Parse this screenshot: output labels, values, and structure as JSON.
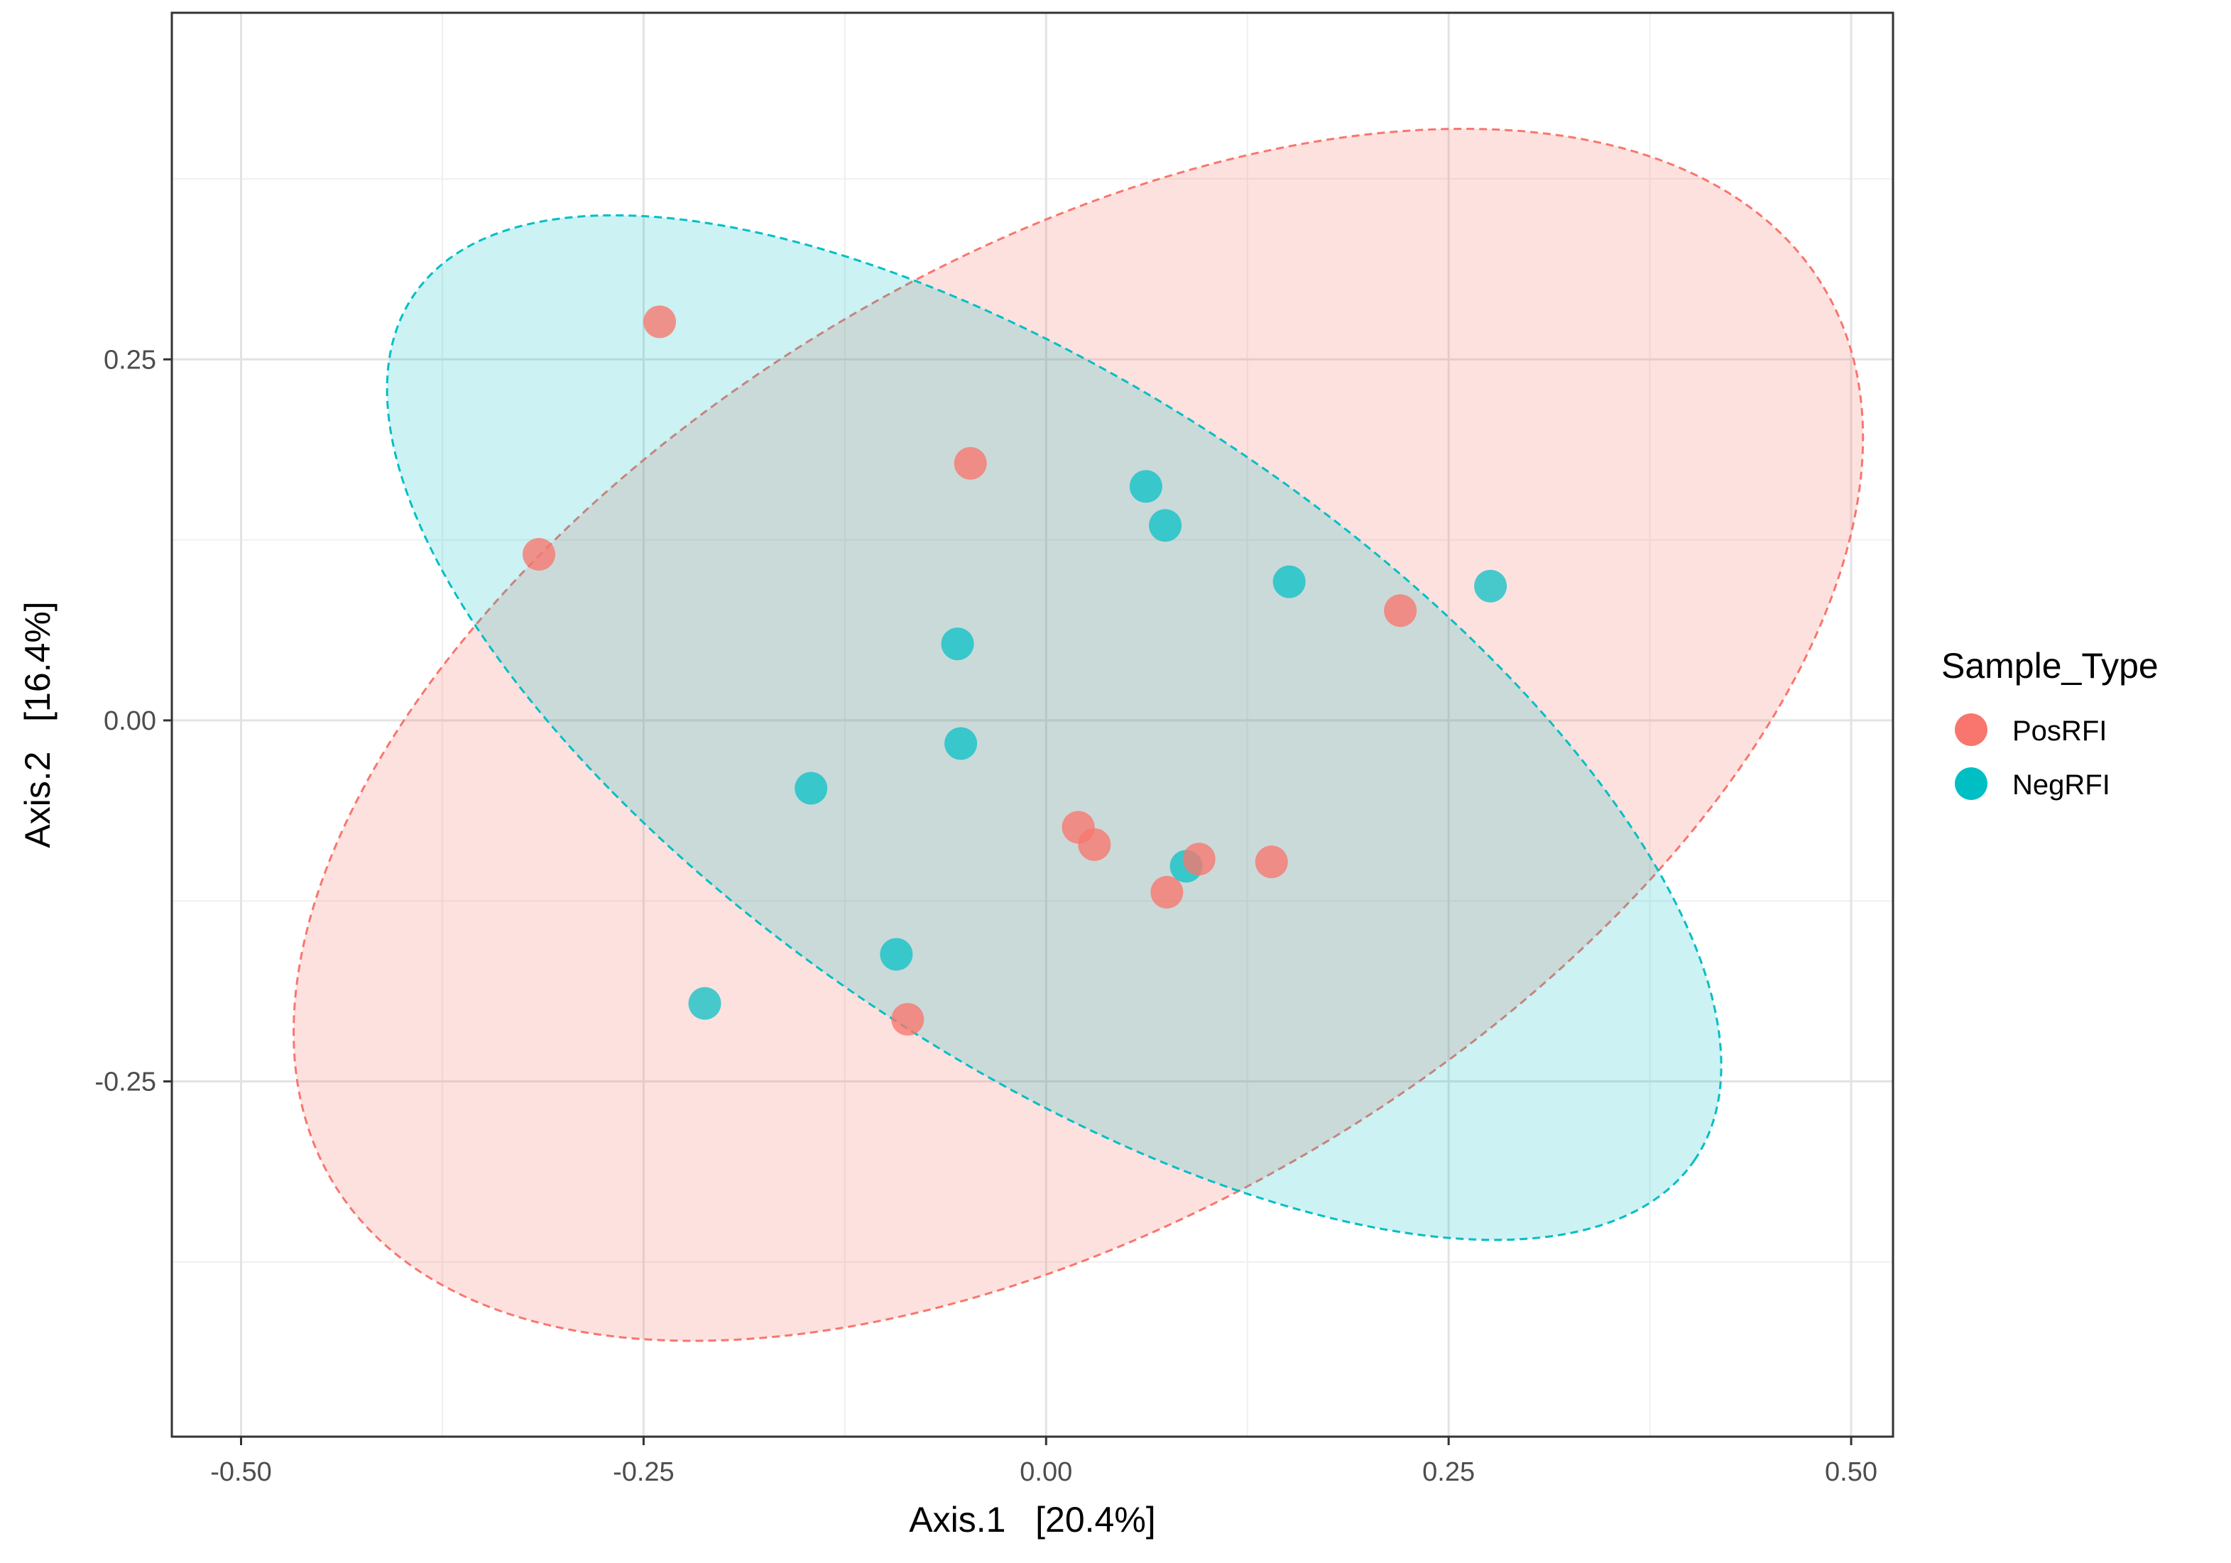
{
  "chart_data": {
    "type": "scatter",
    "title": "",
    "xlabel": "Axis.1   [20.4%]",
    "ylabel": "Axis.2   [16.4%]",
    "xlim": [
      -0.543,
      0.526
    ],
    "ylim": [
      -0.496,
      0.49
    ],
    "xticks": [
      -0.5,
      -0.25,
      0.0,
      0.25,
      0.5
    ],
    "xtick_labels": [
      "-0.50",
      "-0.25",
      "0.00",
      "0.25",
      "0.50"
    ],
    "yticks": [
      -0.25,
      0.0,
      0.25
    ],
    "ytick_labels": [
      "-0.25",
      "0.00",
      "0.25"
    ],
    "grid": true,
    "legend": {
      "title": "Sample_Type",
      "position": "right"
    },
    "series": [
      {
        "name": "PosRFI",
        "color": "#F8766D",
        "x": [
          -0.24,
          -0.315,
          -0.047,
          0.22,
          0.02,
          0.03,
          0.095,
          0.14,
          0.075,
          -0.086
        ],
        "y": [
          0.276,
          0.115,
          0.178,
          0.076,
          -0.074,
          -0.086,
          -0.096,
          -0.098,
          -0.119,
          -0.207
        ],
        "ellipse": {
          "center": [
            0.02,
            -0.01
          ],
          "semi_axes": [
            0.54,
            0.33
          ],
          "angle_deg": -31
        }
      },
      {
        "name": "NegRFI",
        "color": "#00BFC4",
        "x": [
          0.062,
          0.074,
          0.151,
          0.276,
          -0.055,
          -0.053,
          -0.146,
          0.087,
          -0.093,
          -0.212
        ],
        "y": [
          0.162,
          0.135,
          0.096,
          0.093,
          0.053,
          -0.016,
          -0.047,
          -0.101,
          -0.162,
          -0.196
        ],
        "ellipse": {
          "center": [
            0.005,
            -0.005
          ],
          "semi_axes": [
            0.48,
            0.23
          ],
          "angle_deg": 34
        }
      }
    ]
  }
}
